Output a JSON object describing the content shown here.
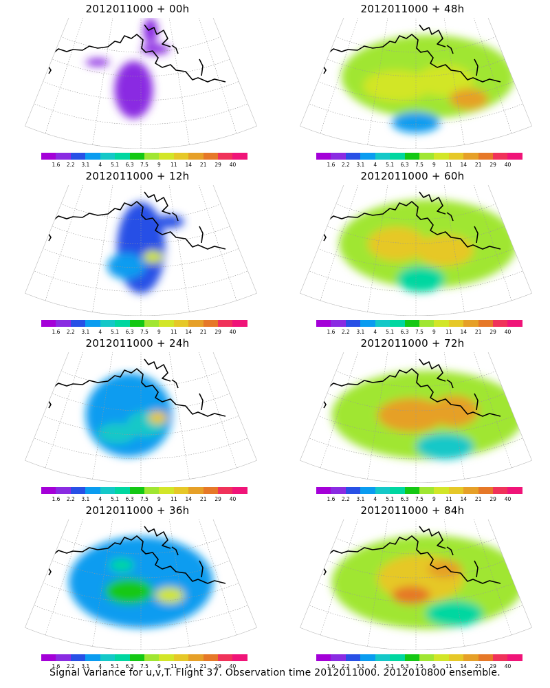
{
  "panels": [
    {
      "title": "2012011000 + 00h",
      "lead_hours": 0,
      "blobs": [
        [
          0.47,
          0.55,
          0.08,
          0.22,
          0.1
        ],
        [
          0.32,
          0.34,
          0.05,
          0.03,
          0.05
        ],
        [
          0.54,
          0.1,
          0.03,
          0.1,
          0.05
        ],
        [
          0.56,
          0.24,
          0.06,
          0.04,
          0.04
        ]
      ]
    },
    {
      "title": "2012011000 + 48h",
      "lead_hours": 48,
      "blobs": [
        [
          0.55,
          0.45,
          0.36,
          0.32,
          0.55
        ],
        [
          0.42,
          0.52,
          0.14,
          0.12,
          0.6
        ],
        [
          0.62,
          0.48,
          0.12,
          0.12,
          0.6
        ],
        [
          0.72,
          0.62,
          0.08,
          0.08,
          0.75
        ],
        [
          0.5,
          0.8,
          0.1,
          0.08,
          0.2
        ]
      ]
    },
    {
      "title": "2012011000 + 12h",
      "lead_hours": 12,
      "blobs": [
        [
          0.5,
          0.48,
          0.1,
          0.35,
          0.18
        ],
        [
          0.55,
          0.55,
          0.04,
          0.05,
          0.6
        ],
        [
          0.44,
          0.62,
          0.08,
          0.1,
          0.25
        ],
        [
          0.62,
          0.28,
          0.06,
          0.05,
          0.12
        ]
      ]
    },
    {
      "title": "2012011000 + 60h",
      "lead_hours": 60,
      "blobs": [
        [
          0.55,
          0.45,
          0.37,
          0.34,
          0.55
        ],
        [
          0.42,
          0.45,
          0.12,
          0.13,
          0.7
        ],
        [
          0.62,
          0.5,
          0.12,
          0.12,
          0.7
        ],
        [
          0.52,
          0.72,
          0.1,
          0.1,
          0.35
        ]
      ]
    },
    {
      "title": "2012011000 + 24h",
      "lead_hours": 24,
      "blobs": [
        [
          0.45,
          0.48,
          0.18,
          0.32,
          0.2
        ],
        [
          0.52,
          0.55,
          0.08,
          0.1,
          0.3
        ],
        [
          0.57,
          0.5,
          0.04,
          0.05,
          0.7
        ],
        [
          0.4,
          0.62,
          0.08,
          0.08,
          0.3
        ]
      ]
    },
    {
      "title": "2012011000 + 72h",
      "lead_hours": 72,
      "blobs": [
        [
          0.55,
          0.48,
          0.4,
          0.34,
          0.5
        ],
        [
          0.48,
          0.48,
          0.14,
          0.13,
          0.75
        ],
        [
          0.66,
          0.45,
          0.1,
          0.12,
          0.75
        ],
        [
          0.62,
          0.72,
          0.12,
          0.1,
          0.3
        ]
      ]
    },
    {
      "title": "2012011000 + 36h",
      "lead_hours": 36,
      "blobs": [
        [
          0.5,
          0.48,
          0.3,
          0.35,
          0.25
        ],
        [
          0.45,
          0.55,
          0.1,
          0.1,
          0.45
        ],
        [
          0.62,
          0.58,
          0.06,
          0.06,
          0.65
        ],
        [
          0.42,
          0.35,
          0.05,
          0.05,
          0.4
        ]
      ]
    },
    {
      "title": "2012011000 + 84h",
      "lead_hours": 84,
      "blobs": [
        [
          0.55,
          0.48,
          0.4,
          0.36,
          0.55
        ],
        [
          0.52,
          0.45,
          0.18,
          0.18,
          0.72
        ],
        [
          0.48,
          0.58,
          0.08,
          0.07,
          0.88
        ],
        [
          0.62,
          0.38,
          0.07,
          0.07,
          0.78
        ],
        [
          0.66,
          0.72,
          0.12,
          0.1,
          0.35
        ]
      ]
    }
  ],
  "colorbar": {
    "colors": [
      "#a400d8",
      "#8a2be2",
      "#2850e6",
      "#0a9cf0",
      "#14c8c8",
      "#00d7a0",
      "#14c814",
      "#a0e632",
      "#d2e628",
      "#e6c828",
      "#e6a028",
      "#e67828",
      "#f0325a",
      "#f01478"
    ],
    "labels": [
      "1.6",
      "2.2",
      "3.1",
      "4",
      "5.1",
      "6.3",
      "7.5",
      "9",
      "11",
      "14",
      "21",
      "29",
      "40"
    ]
  },
  "footer": "Signal Variance for u,v,T. Flight 37. Observation time 2012011000. 2012010800 ensemble."
}
